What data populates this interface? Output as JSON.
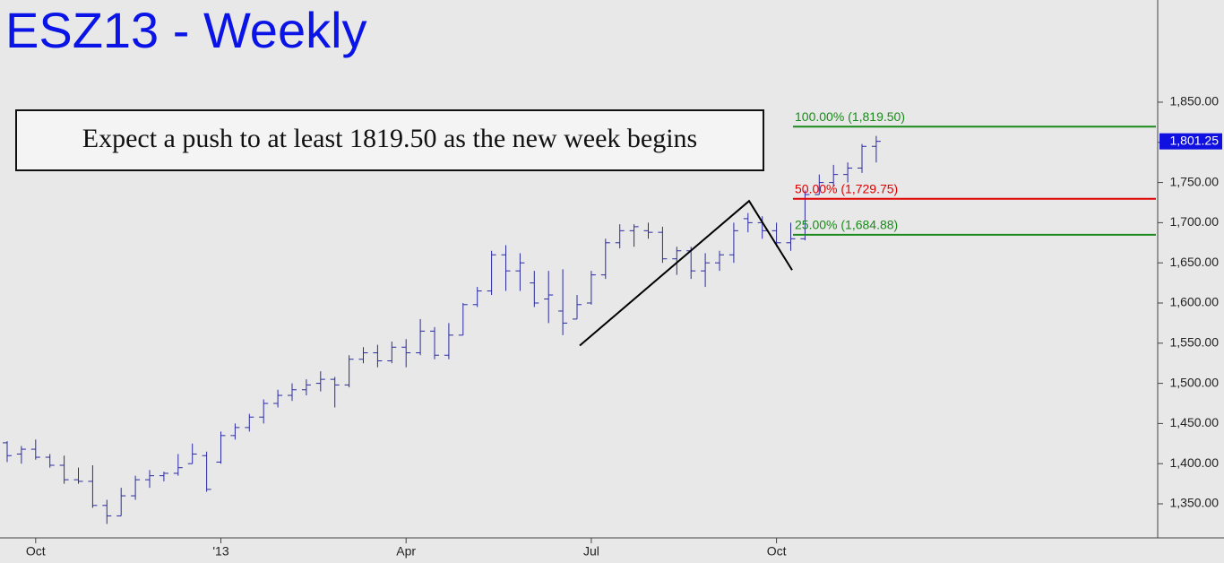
{
  "chart_data": {
    "type": "ohlc",
    "title": "ESZ13 - Weekly",
    "annotation": "Expect a push to at least 1819.50 as the new week begins",
    "categories": [
      null,
      null,
      "Oct",
      null,
      null,
      null,
      null,
      null,
      null,
      null,
      null,
      null,
      null,
      null,
      null,
      "'13",
      null,
      null,
      null,
      null,
      null,
      null,
      null,
      null,
      null,
      null,
      null,
      null,
      "Apr",
      null,
      null,
      null,
      null,
      null,
      null,
      null,
      null,
      null,
      null,
      null,
      null,
      "Jul",
      null,
      null,
      null,
      null,
      null,
      null,
      null,
      null,
      null,
      null,
      null,
      null,
      "Oct",
      null,
      null,
      null,
      null,
      null,
      null,
      null
    ],
    "ohlc": [
      [
        1426,
        1428,
        1402,
        1410
      ],
      [
        1412,
        1422,
        1400,
        1418
      ],
      [
        1418,
        1430,
        1405,
        1408
      ],
      [
        1408,
        1412,
        1395,
        1398
      ],
      [
        1398,
        1410,
        1375,
        1380
      ],
      [
        1380,
        1395,
        1375,
        1378
      ],
      [
        1378,
        1398,
        1345,
        1348
      ],
      [
        1348,
        1355,
        1325,
        1335
      ],
      [
        1335,
        1370,
        1335,
        1360
      ],
      [
        1360,
        1385,
        1355,
        1380
      ],
      [
        1380,
        1392,
        1370,
        1385
      ],
      [
        1385,
        1390,
        1378,
        1388
      ],
      [
        1388,
        1412,
        1385,
        1395
      ],
      [
        1400,
        1425,
        1400,
        1412
      ],
      [
        1410,
        1415,
        1365,
        1368
      ],
      [
        1402,
        1440,
        1400,
        1435
      ],
      [
        1435,
        1450,
        1430,
        1445
      ],
      [
        1445,
        1462,
        1440,
        1458
      ],
      [
        1458,
        1480,
        1450,
        1475
      ],
      [
        1475,
        1492,
        1470,
        1485
      ],
      [
        1485,
        1500,
        1478,
        1492
      ],
      [
        1492,
        1505,
        1485,
        1498
      ],
      [
        1500,
        1515,
        1490,
        1505
      ],
      [
        1505,
        1508,
        1470,
        1498
      ],
      [
        1498,
        1535,
        1495,
        1530
      ],
      [
        1530,
        1545,
        1525,
        1538
      ],
      [
        1538,
        1548,
        1520,
        1528
      ],
      [
        1528,
        1552,
        1525,
        1545
      ],
      [
        1545,
        1555,
        1520,
        1538
      ],
      [
        1538,
        1580,
        1535,
        1565
      ],
      [
        1565,
        1570,
        1530,
        1535
      ],
      [
        1535,
        1575,
        1530,
        1560
      ],
      [
        1560,
        1600,
        1560,
        1598
      ],
      [
        1598,
        1620,
        1595,
        1615
      ],
      [
        1615,
        1665,
        1610,
        1660
      ],
      [
        1660,
        1672,
        1615,
        1640
      ],
      [
        1640,
        1662,
        1615,
        1650
      ],
      [
        1625,
        1640,
        1595,
        1600
      ],
      [
        1605,
        1640,
        1575,
        1610
      ],
      [
        1590,
        1642,
        1560,
        1575
      ],
      [
        1580,
        1610,
        1580,
        1598
      ],
      [
        1600,
        1640,
        1598,
        1635
      ],
      [
        1635,
        1680,
        1630,
        1675
      ],
      [
        1675,
        1698,
        1668,
        1690
      ],
      [
        1690,
        1698,
        1670,
        1695
      ],
      [
        1690,
        1700,
        1680,
        1688
      ],
      [
        1688,
        1695,
        1650,
        1655
      ],
      [
        1655,
        1670,
        1635,
        1665
      ],
      [
        1665,
        1670,
        1630,
        1640
      ],
      [
        1640,
        1662,
        1620,
        1650
      ],
      [
        1650,
        1665,
        1640,
        1660
      ],
      [
        1660,
        1700,
        1650,
        1690
      ],
      [
        1705,
        1712,
        1688,
        1700
      ],
      [
        1700,
        1708,
        1680,
        1690
      ],
      [
        1690,
        1700,
        1670,
        1675
      ],
      [
        1675,
        1700,
        1665,
        1680
      ],
      [
        1680,
        1740,
        1678,
        1735
      ],
      [
        1735,
        1760,
        1735,
        1750
      ],
      [
        1750,
        1772,
        1745,
        1760
      ],
      [
        1760,
        1775,
        1750,
        1768
      ],
      [
        1768,
        1798,
        1762,
        1795
      ],
      [
        1795,
        1808,
        1775,
        1801.25
      ]
    ],
    "color": "#2a2aa0",
    "abc_points": [
      1547,
      1727,
      1641
    ],
    "fib_levels": [
      {
        "value": 1819.5,
        "label": "100.00% (1,819.50)",
        "color": "#1a8a1a"
      },
      {
        "value": 1729.75,
        "label": "50.00% (1,729.75)",
        "color": "#e00000"
      },
      {
        "value": 1684.88,
        "label": "25.00% (1,684.88)",
        "color": "#1a8a1a"
      }
    ],
    "last_price": {
      "value": 1801.25,
      "label": "1,801.25"
    },
    "ylim": [
      1307.6,
      1977.2
    ],
    "yticks": [
      {
        "value": 1350,
        "label": "1,350.00"
      },
      {
        "value": 1400,
        "label": "1,400.00"
      },
      {
        "value": 1450,
        "label": "1,450.00"
      },
      {
        "value": 1500,
        "label": "1,500.00"
      },
      {
        "value": 1550,
        "label": "1,550.00"
      },
      {
        "value": 1600,
        "label": "1,600.00"
      },
      {
        "value": 1650,
        "label": "1,650.00"
      },
      {
        "value": 1700,
        "label": "1,700.00"
      },
      {
        "value": 1750,
        "label": "1,750.00"
      },
      {
        "value": 1800,
        "label": "1,800.00"
      },
      {
        "value": 1850,
        "label": "1,850.00"
      }
    ]
  }
}
